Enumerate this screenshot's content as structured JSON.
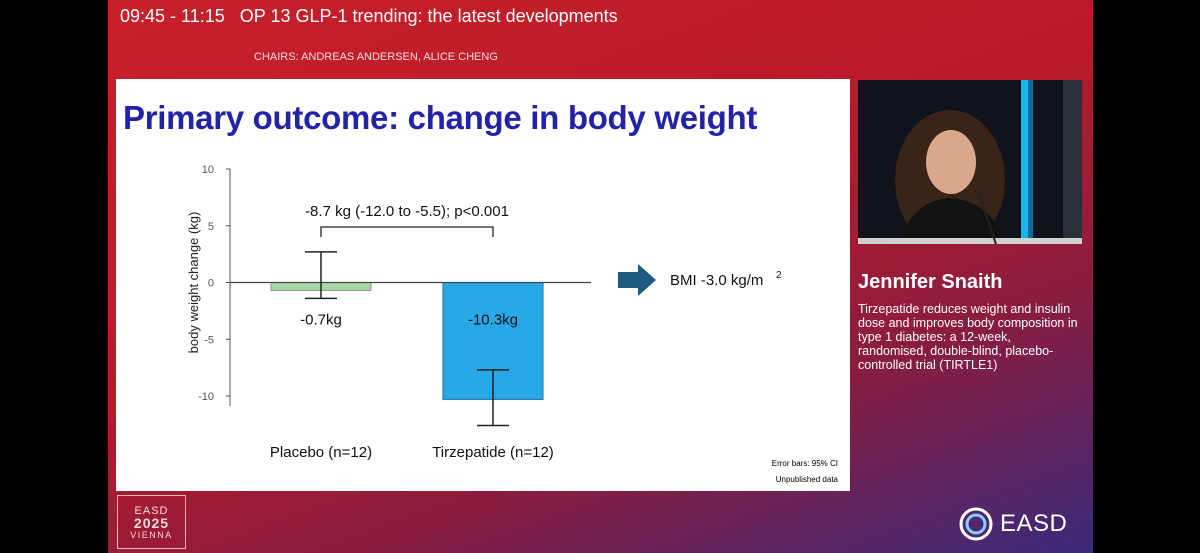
{
  "session": {
    "time": "09:45 - 11:15",
    "title": "OP 13 GLP-1 trending: the latest developments",
    "chairs": "CHAIRS: ANDREAS ANDERSEN, ALICE CHENG"
  },
  "slide": {
    "title": "Primary outcome: change in body weight",
    "arrow_text": "BMI -3.0 kg/m",
    "arrow_sup": "2",
    "footnote_1": "Error bars: 95% CI",
    "footnote_2": "Unpublished data"
  },
  "chart_data": {
    "type": "bar",
    "title": "Primary outcome: change in body weight",
    "xlabel": "",
    "ylabel": "body weight change (kg)",
    "ylim": [
      -10,
      10
    ],
    "yticks": [
      10,
      5,
      0,
      -5,
      -10
    ],
    "ytick_labels": [
      "10",
      "5",
      "0",
      "-5",
      "-10"
    ],
    "categories": [
      "Placebo (n=12)",
      "Tirzepatide (n=12)"
    ],
    "values": [
      -0.7,
      -10.3
    ],
    "error_low": [
      -1.4,
      -12.6
    ],
    "error_high": [
      2.7,
      -7.7
    ],
    "value_labels": [
      "-0.7kg",
      "-10.3kg"
    ],
    "colors": [
      "#a8d8a8",
      "#29a8e8"
    ],
    "bar_edge_colors": [
      "#7aa07a",
      "#1a6fa0"
    ],
    "comparison_label": "-8.7 kg (-12.0 to -5.5); p<0.001",
    "grid": false
  },
  "speaker": {
    "name": "Jennifer Snaith",
    "talk_title": "Tirzepatide reduces weight and insulin dose and improves body composition in type 1 diabetes: a 12-week, randomised, double-blind, placebo-controlled trial (TIRTLE1)"
  },
  "branding": {
    "left_logo_top": "EASD",
    "left_logo_year": "2025",
    "left_logo_city": "VIENNA",
    "right_logo": "EASD"
  },
  "colors": {
    "accent_red": "#c8202a",
    "title_blue": "#2323a8",
    "arrow_blue": "#1f5a80"
  }
}
